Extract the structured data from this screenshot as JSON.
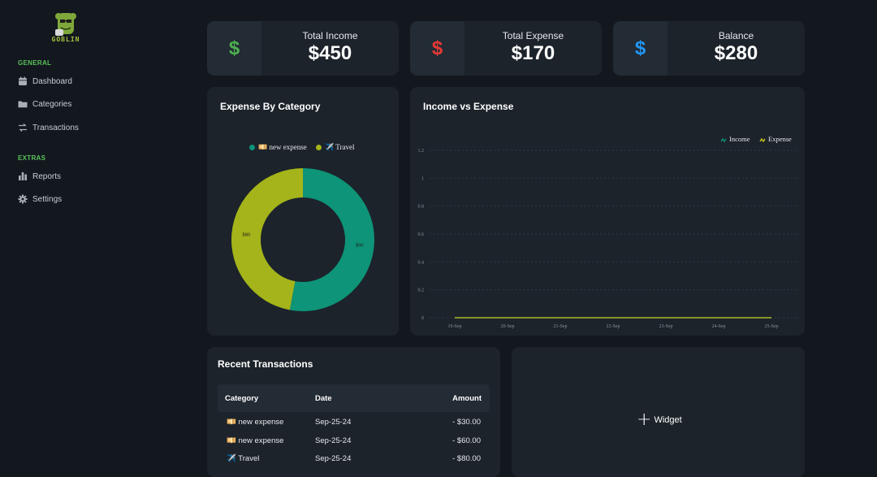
{
  "brand": {
    "name": "GOBLIN"
  },
  "sidebar": {
    "sections": [
      {
        "title": "GENERAL",
        "items": [
          {
            "label": "Dashboard",
            "icon": "calendar-icon"
          },
          {
            "label": "Categories",
            "icon": "folder-icon"
          },
          {
            "label": "Transactions",
            "icon": "swap-arrows-icon"
          }
        ]
      },
      {
        "title": "EXTRAS",
        "items": [
          {
            "label": "Reports",
            "icon": "bar-chart-icon"
          },
          {
            "label": "Settings",
            "icon": "gear-icon"
          }
        ]
      }
    ]
  },
  "stats": [
    {
      "label": "Total Income",
      "value": "$450",
      "icon": "dollar-icon",
      "color": "#4caf50"
    },
    {
      "label": "Total Expense",
      "value": "$170",
      "icon": "dollar-icon",
      "color": "#e53935"
    },
    {
      "label": "Balance",
      "value": "$280",
      "icon": "dollar-icon",
      "color": "#2196f3"
    }
  ],
  "expense_by_category": {
    "title": "Expense By Category",
    "chart_data": {
      "type": "pie",
      "labels": [
        "💴 new expense",
        "✈️ Travel"
      ],
      "values": [
        90,
        80
      ],
      "data_labels": [
        "$90",
        "$80"
      ],
      "colors": [
        "#0e9478",
        "#a4b41a"
      ],
      "legend": "top"
    }
  },
  "income_vs_expense": {
    "title": "Income vs Expense",
    "chart_data": {
      "type": "line",
      "x": [
        "19-Sep",
        "20-Sep",
        "21-Sep",
        "22-Sep",
        "23-Sep",
        "24-Sep",
        "25-Sep"
      ],
      "series": [
        {
          "name": "Income",
          "values": [
            0,
            0,
            0,
            0,
            0,
            0,
            0
          ],
          "color": "#0e9478"
        },
        {
          "name": "Expense",
          "values": [
            0,
            0,
            0,
            0,
            0,
            0,
            0
          ],
          "color": "#c8c81a"
        }
      ],
      "ylim": [
        0,
        1.2
      ],
      "yticks": [
        "0",
        "0.2",
        "0.4",
        "0.6",
        "0.8",
        "1",
        "1.2"
      ],
      "grid": true,
      "legend": "top-right"
    }
  },
  "recent_transactions": {
    "title": "Recent Transactions",
    "columns": [
      "Category",
      "Date",
      "Amount"
    ],
    "rows": [
      {
        "category": "💴 new expense",
        "date": "Sep-25-24",
        "amount": "- $30.00"
      },
      {
        "category": "💴 new expense",
        "date": "Sep-25-24",
        "amount": "- $60.00"
      },
      {
        "category": "✈️ Travel",
        "date": "Sep-25-24",
        "amount": "- $80.00"
      }
    ]
  },
  "widget": {
    "label": "Widget"
  }
}
